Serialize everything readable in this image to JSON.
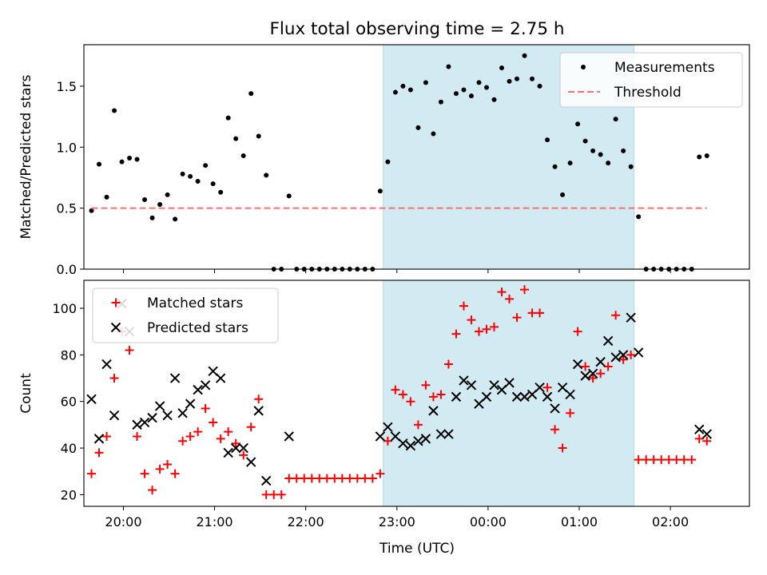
{
  "chart_data": [
    {
      "type": "scatter",
      "title": "Flux total observing time = 2.75 h",
      "xlabel": "",
      "ylabel": "Matched/Predicted stars",
      "xlim": [
        "19:34",
        "02:52"
      ],
      "ylim": [
        0,
        1.84
      ],
      "y_ticks": [
        0.0,
        0.5,
        1.0,
        1.5
      ],
      "y_tick_labels": [
        "0.0",
        "0.5",
        "1.0",
        "1.5"
      ],
      "x_ticks": [
        "20:00",
        "21:00",
        "22:00",
        "23:00",
        "00:00",
        "01:00",
        "02:00"
      ],
      "highlight_span": {
        "x_start": "22:51",
        "x_end": "01:36",
        "color": "#add8e6"
      },
      "legend": {
        "position": "top-right",
        "entries": [
          "Measurements",
          "Threshold"
        ]
      },
      "series": [
        {
          "name": "Measurements",
          "marker": "dot",
          "color": "#000000",
          "points": [
            [
              "19:39",
              0.48
            ],
            [
              "19:44",
              0.86
            ],
            [
              "19:49",
              0.59
            ],
            [
              "19:54",
              1.3
            ],
            [
              "19:59",
              0.88
            ],
            [
              "20:04",
              0.91
            ],
            [
              "20:09",
              0.9
            ],
            [
              "20:14",
              0.57
            ],
            [
              "20:19",
              0.42
            ],
            [
              "20:24",
              0.53
            ],
            [
              "20:29",
              0.61
            ],
            [
              "20:34",
              0.41
            ],
            [
              "20:39",
              0.78
            ],
            [
              "20:44",
              0.76
            ],
            [
              "20:49",
              0.72
            ],
            [
              "20:54",
              0.85
            ],
            [
              "20:59",
              0.7
            ],
            [
              "21:04",
              0.63
            ],
            [
              "21:09",
              1.24
            ],
            [
              "21:14",
              1.07
            ],
            [
              "21:19",
              0.93
            ],
            [
              "21:24",
              1.44
            ],
            [
              "21:29",
              1.09
            ],
            [
              "21:34",
              0.77
            ],
            [
              "21:39",
              0.0
            ],
            [
              "21:44",
              0.0
            ],
            [
              "21:49",
              0.6
            ],
            [
              "21:54",
              0.0
            ],
            [
              "21:59",
              0.0
            ],
            [
              "22:04",
              0.0
            ],
            [
              "22:09",
              0.0
            ],
            [
              "22:14",
              0.0
            ],
            [
              "22:19",
              0.0
            ],
            [
              "22:24",
              0.0
            ],
            [
              "22:29",
              0.0
            ],
            [
              "22:34",
              0.0
            ],
            [
              "22:39",
              0.0
            ],
            [
              "22:44",
              0.0
            ],
            [
              "22:49",
              0.64
            ],
            [
              "22:54",
              0.88
            ],
            [
              "22:59",
              1.45
            ],
            [
              "23:04",
              1.5
            ],
            [
              "23:09",
              1.47
            ],
            [
              "23:14",
              1.16
            ],
            [
              "23:19",
              1.53
            ],
            [
              "23:24",
              1.11
            ],
            [
              "23:29",
              1.37
            ],
            [
              "23:34",
              1.66
            ],
            [
              "23:39",
              1.44
            ],
            [
              "23:44",
              1.47
            ],
            [
              "23:49",
              1.42
            ],
            [
              "23:54",
              1.53
            ],
            [
              "23:59",
              1.49
            ],
            [
              "00:04",
              1.39
            ],
            [
              "00:09",
              1.65
            ],
            [
              "00:14",
              1.54
            ],
            [
              "00:19",
              1.56
            ],
            [
              "00:24",
              1.75
            ],
            [
              "00:29",
              1.56
            ],
            [
              "00:34",
              1.5
            ],
            [
              "00:39",
              1.06
            ],
            [
              "00:44",
              0.84
            ],
            [
              "00:49",
              0.61
            ],
            [
              "00:54",
              0.87
            ],
            [
              "00:59",
              1.19
            ],
            [
              "01:04",
              1.05
            ],
            [
              "01:09",
              0.97
            ],
            [
              "01:14",
              0.94
            ],
            [
              "01:19",
              0.87
            ],
            [
              "01:24",
              1.23
            ],
            [
              "01:29",
              0.97
            ],
            [
              "01:34",
              0.84
            ],
            [
              "01:39",
              0.43
            ],
            [
              "01:44",
              0.0
            ],
            [
              "01:49",
              0.0
            ],
            [
              "01:54",
              0.0
            ],
            [
              "01:59",
              0.0
            ],
            [
              "02:04",
              0.0
            ],
            [
              "02:09",
              0.0
            ],
            [
              "02:14",
              0.0
            ],
            [
              "02:19",
              0.92
            ],
            [
              "02:24",
              0.93
            ]
          ]
        },
        {
          "name": "Threshold",
          "marker": "dashed-line",
          "color": "#ff7070",
          "points": [
            [
              "19:39",
              0.5
            ],
            [
              "02:24",
              0.5
            ]
          ]
        }
      ]
    },
    {
      "type": "scatter",
      "title": "",
      "xlabel": "Time (UTC)",
      "ylabel": "Count",
      "xlim": [
        "19:34",
        "02:52"
      ],
      "ylim": [
        15,
        112
      ],
      "y_ticks": [
        20,
        40,
        60,
        80,
        100
      ],
      "y_tick_labels": [
        "20",
        "40",
        "60",
        "80",
        "100"
      ],
      "x_ticks": [
        "20:00",
        "21:00",
        "22:00",
        "23:00",
        "00:00",
        "01:00",
        "02:00"
      ],
      "x_tick_labels": [
        "20:00",
        "21:00",
        "22:00",
        "23:00",
        "00:00",
        "01:00",
        "02:00"
      ],
      "highlight_span": {
        "x_start": "22:51",
        "x_end": "01:36",
        "color": "#add8e6"
      },
      "legend": {
        "position": "top-left",
        "entries": [
          "Matched stars",
          "Predicted stars"
        ]
      },
      "series": [
        {
          "name": "Matched stars",
          "marker": "plus",
          "color": "#ff0000",
          "points": [
            [
              "19:39",
              29
            ],
            [
              "19:44",
              38
            ],
            [
              "19:49",
              45
            ],
            [
              "19:54",
              70
            ],
            [
              "19:59",
              90
            ],
            [
              "20:04",
              82
            ],
            [
              "20:09",
              45
            ],
            [
              "20:14",
              29
            ],
            [
              "20:19",
              22
            ],
            [
              "20:24",
              31
            ],
            [
              "20:29",
              33
            ],
            [
              "20:34",
              29
            ],
            [
              "20:39",
              43
            ],
            [
              "20:44",
              45
            ],
            [
              "20:49",
              47
            ],
            [
              "20:54",
              57
            ],
            [
              "20:59",
              51
            ],
            [
              "21:04",
              44
            ],
            [
              "21:09",
              47
            ],
            [
              "21:14",
              42
            ],
            [
              "21:19",
              37
            ],
            [
              "21:24",
              49
            ],
            [
              "21:29",
              61
            ],
            [
              "21:34",
              20
            ],
            [
              "21:39",
              20
            ],
            [
              "21:44",
              20
            ],
            [
              "21:49",
              27
            ],
            [
              "21:54",
              27
            ],
            [
              "21:59",
              27
            ],
            [
              "22:04",
              27
            ],
            [
              "22:09",
              27
            ],
            [
              "22:14",
              27
            ],
            [
              "22:19",
              27
            ],
            [
              "22:24",
              27
            ],
            [
              "22:29",
              27
            ],
            [
              "22:34",
              27
            ],
            [
              "22:39",
              27
            ],
            [
              "22:44",
              27
            ],
            [
              "22:49",
              29
            ],
            [
              "22:54",
              43
            ],
            [
              "22:59",
              65
            ],
            [
              "23:04",
              63
            ],
            [
              "23:09",
              60
            ],
            [
              "23:14",
              50
            ],
            [
              "23:19",
              67
            ],
            [
              "23:24",
              62
            ],
            [
              "23:29",
              63
            ],
            [
              "23:34",
              76
            ],
            [
              "23:39",
              89
            ],
            [
              "23:44",
              101
            ],
            [
              "23:49",
              95
            ],
            [
              "23:54",
              90
            ],
            [
              "23:59",
              91
            ],
            [
              "00:04",
              92
            ],
            [
              "00:09",
              107
            ],
            [
              "00:14",
              104
            ],
            [
              "00:19",
              96
            ],
            [
              "00:24",
              108
            ],
            [
              "00:29",
              98
            ],
            [
              "00:34",
              98
            ],
            [
              "00:39",
              66
            ],
            [
              "00:44",
              48
            ],
            [
              "00:49",
              40
            ],
            [
              "00:54",
              55
            ],
            [
              "00:59",
              90
            ],
            [
              "01:04",
              75
            ],
            [
              "01:09",
              70
            ],
            [
              "01:14",
              72
            ],
            [
              "01:19",
              75
            ],
            [
              "01:24",
              97
            ],
            [
              "01:29",
              78
            ],
            [
              "01:34",
              80
            ],
            [
              "01:39",
              35
            ],
            [
              "01:44",
              35
            ],
            [
              "01:49",
              35
            ],
            [
              "01:54",
              35
            ],
            [
              "01:59",
              35
            ],
            [
              "02:04",
              35
            ],
            [
              "02:09",
              35
            ],
            [
              "02:14",
              35
            ],
            [
              "02:19",
              44
            ],
            [
              "02:24",
              43
            ]
          ]
        },
        {
          "name": "Predicted stars",
          "marker": "x",
          "color": "#000000",
          "points": [
            [
              "19:39",
              61
            ],
            [
              "19:44",
              44
            ],
            [
              "19:49",
              76
            ],
            [
              "19:54",
              54
            ],
            [
              "19:59",
              102
            ],
            [
              "20:04",
              90
            ],
            [
              "20:09",
              50
            ],
            [
              "20:14",
              51
            ],
            [
              "20:19",
              53
            ],
            [
              "20:24",
              58
            ],
            [
              "20:29",
              54
            ],
            [
              "20:34",
              70
            ],
            [
              "20:39",
              55
            ],
            [
              "20:44",
              59
            ],
            [
              "20:49",
              65
            ],
            [
              "20:54",
              67
            ],
            [
              "20:59",
              73
            ],
            [
              "21:04",
              70
            ],
            [
              "21:09",
              38
            ],
            [
              "21:14",
              40
            ],
            [
              "21:19",
              40
            ],
            [
              "21:24",
              34
            ],
            [
              "21:29",
              56
            ],
            [
              "21:34",
              26
            ],
            [
              "21:49",
              45
            ],
            [
              "22:49",
              45
            ],
            [
              "22:54",
              49
            ],
            [
              "22:59",
              45
            ],
            [
              "23:04",
              42
            ],
            [
              "23:09",
              41
            ],
            [
              "23:14",
              43
            ],
            [
              "23:19",
              44
            ],
            [
              "23:24",
              56
            ],
            [
              "23:29",
              46
            ],
            [
              "23:34",
              46
            ],
            [
              "23:39",
              62
            ],
            [
              "23:44",
              69
            ],
            [
              "23:49",
              67
            ],
            [
              "23:54",
              59
            ],
            [
              "23:59",
              62
            ],
            [
              "00:04",
              67
            ],
            [
              "00:09",
              65
            ],
            [
              "00:14",
              68
            ],
            [
              "00:19",
              62
            ],
            [
              "00:24",
              62
            ],
            [
              "00:29",
              63
            ],
            [
              "00:34",
              66
            ],
            [
              "00:39",
              62
            ],
            [
              "00:44",
              57
            ],
            [
              "00:49",
              66
            ],
            [
              "00:54",
              63
            ],
            [
              "00:59",
              76
            ],
            [
              "01:04",
              71
            ],
            [
              "01:09",
              72
            ],
            [
              "01:14",
              77
            ],
            [
              "01:19",
              86
            ],
            [
              "01:24",
              79
            ],
            [
              "01:29",
              80
            ],
            [
              "01:34",
              96
            ],
            [
              "01:39",
              81
            ],
            [
              "02:19",
              48
            ],
            [
              "02:24",
              46
            ]
          ]
        }
      ]
    }
  ]
}
